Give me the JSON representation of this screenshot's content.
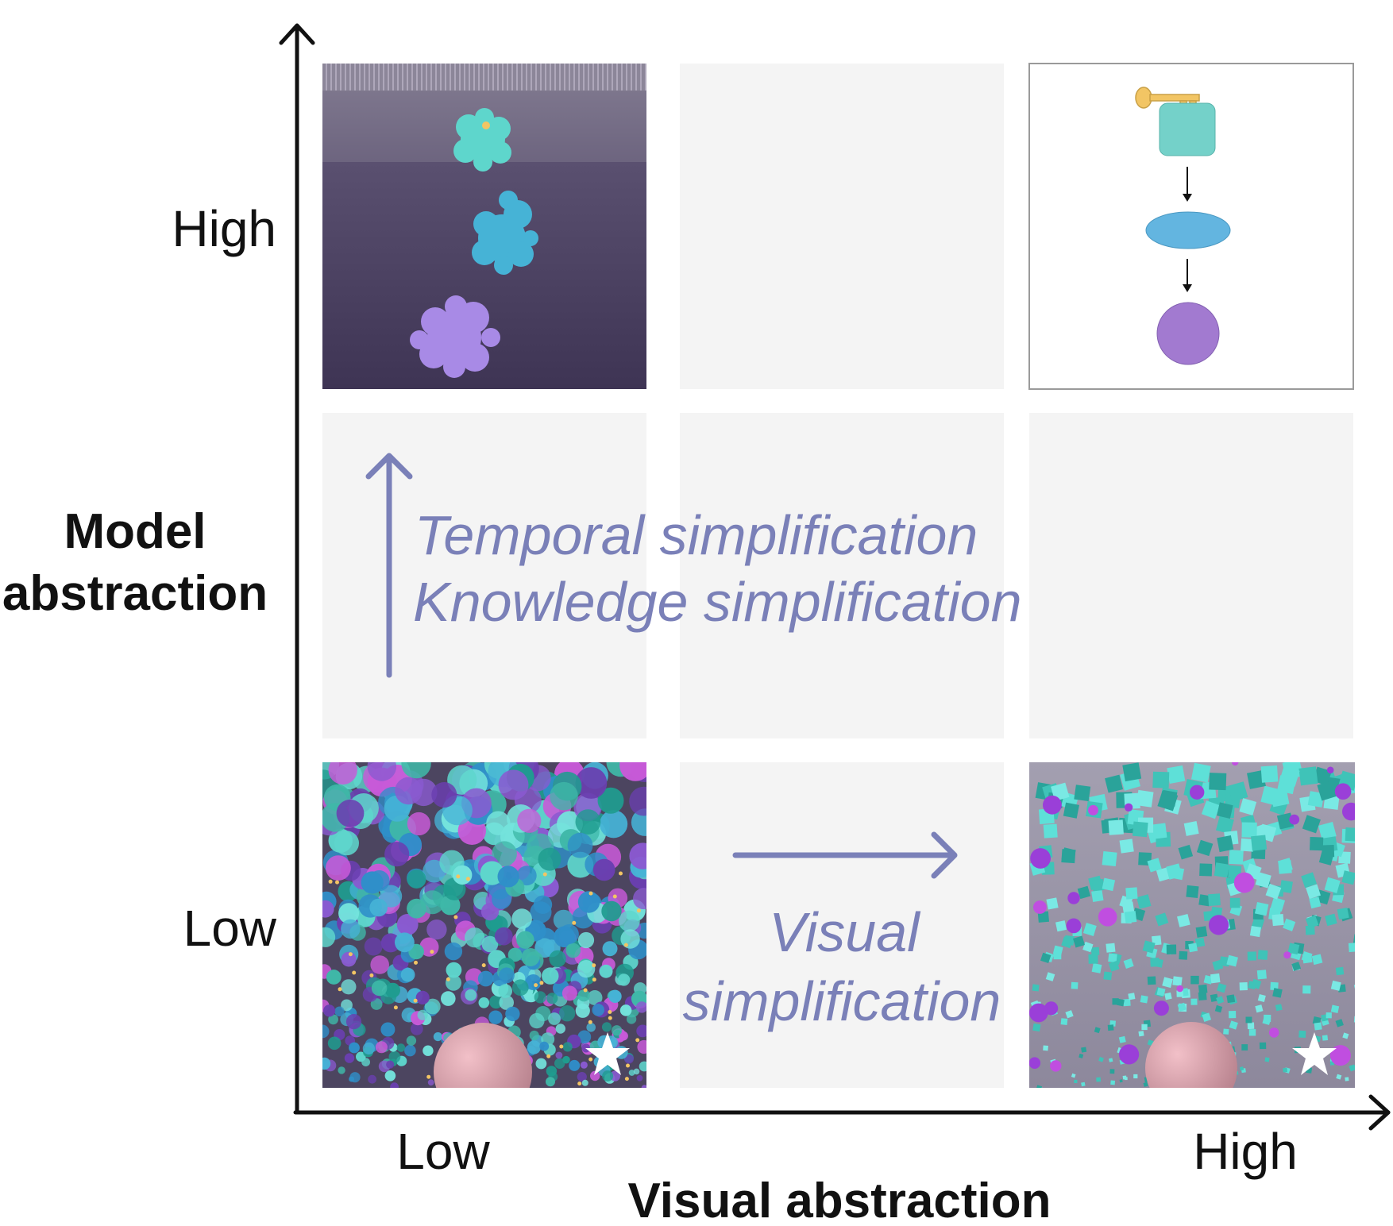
{
  "y_axis": {
    "title_line1": "Model",
    "title_line2": "abstraction",
    "tick_high": "High",
    "tick_low": "Low"
  },
  "x_axis": {
    "title": "Visual abstraction",
    "tick_low": "Low",
    "tick_high": "High"
  },
  "annotations": {
    "vertical_line1": "Temporal simplification",
    "vertical_line2": "Knowledge simplification",
    "horizontal_line1": "Visual",
    "horizontal_line2": "simplification"
  },
  "colors": {
    "axis": "#111111",
    "annotation": "#7a80b8",
    "cell_empty": "#f4f4f4",
    "teal": "#5ecfcf",
    "blue": "#4fb4dd",
    "purple": "#a27ad8",
    "scene_bg": "#4a3f5e",
    "key": "#f2c564"
  },
  "icons": {
    "star": "star-icon",
    "key": "key-icon"
  }
}
